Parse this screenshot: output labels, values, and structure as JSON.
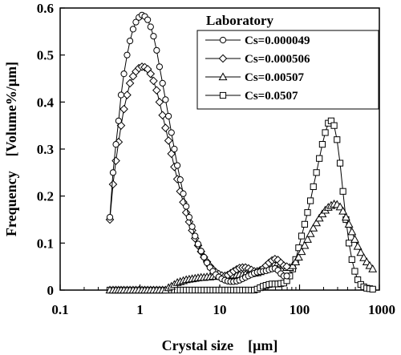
{
  "chart_data": {
    "type": "line",
    "title": "",
    "xlabel": "Crystal size　[μm]",
    "ylabel": "Frequency　[Volume%/μm]",
    "x_scale": "log",
    "xlim": [
      0.1,
      1000
    ],
    "ylim": [
      0,
      0.6
    ],
    "x_ticks": [
      0.1,
      1,
      10,
      100,
      1000
    ],
    "x_tick_labels": [
      "0.1",
      "1",
      "10",
      "100",
      "1000"
    ],
    "y_ticks": [
      0,
      0.1,
      0.2,
      0.3,
      0.4,
      0.5,
      0.6
    ],
    "y_tick_labels": [
      "0",
      "0.1",
      "0.2",
      "0.3",
      "0.4",
      "0.5",
      "0.6"
    ],
    "grid": false,
    "legend": {
      "title": "Laboratory",
      "position": "top-right"
    },
    "series": [
      {
        "name": "Cs=0.000049",
        "marker": "circle",
        "x": [
          0.42,
          0.46,
          0.5,
          0.54,
          0.58,
          0.63,
          0.69,
          0.75,
          0.82,
          0.89,
          0.97,
          1.06,
          1.15,
          1.25,
          1.36,
          1.48,
          1.62,
          1.76,
          1.92,
          2.09,
          2.28,
          2.48,
          2.7,
          2.94,
          3.2,
          3.49,
          3.8,
          4.14,
          4.51,
          4.91,
          5.35,
          5.83,
          6.35,
          6.92,
          7.54,
          8.21,
          8.94,
          9.74,
          10.6,
          11.6,
          12.6,
          13.7,
          14.9,
          16.3,
          17.7,
          19.3,
          21.0,
          22.9,
          24.9,
          27.1,
          29.5,
          32.1,
          35.0,
          38.1,
          41.5,
          45.2,
          49.2,
          53.6,
          58.3,
          63.5,
          69.2
        ],
        "y": [
          0.155,
          0.25,
          0.31,
          0.36,
          0.415,
          0.46,
          0.5,
          0.53,
          0.555,
          0.57,
          0.58,
          0.585,
          0.582,
          0.575,
          0.56,
          0.54,
          0.51,
          0.475,
          0.44,
          0.405,
          0.37,
          0.335,
          0.3,
          0.265,
          0.235,
          0.205,
          0.178,
          0.155,
          0.135,
          0.115,
          0.098,
          0.083,
          0.07,
          0.058,
          0.048,
          0.04,
          0.033,
          0.028,
          0.024,
          0.021,
          0.019,
          0.018,
          0.018,
          0.019,
          0.021,
          0.024,
          0.027,
          0.03,
          0.033,
          0.036,
          0.038,
          0.039,
          0.04,
          0.041,
          0.043,
          0.045,
          0.046,
          0.042,
          0.035,
          0.03,
          0.03
        ]
      },
      {
        "name": "Cs=0.000506",
        "marker": "diamond",
        "x": [
          0.42,
          0.46,
          0.5,
          0.54,
          0.58,
          0.63,
          0.69,
          0.75,
          0.82,
          0.89,
          0.97,
          1.06,
          1.15,
          1.25,
          1.36,
          1.48,
          1.62,
          1.76,
          1.92,
          2.09,
          2.28,
          2.48,
          2.7,
          2.94,
          3.2,
          3.49,
          3.8,
          4.14,
          4.51,
          4.91,
          5.35,
          5.83,
          6.35,
          6.92,
          7.54,
          8.21,
          8.94,
          9.74,
          10.6,
          11.6,
          12.6,
          13.7,
          14.9,
          16.3,
          17.7,
          19.3,
          21.0,
          22.9,
          24.9,
          27.1,
          29.5,
          32.1,
          35.0,
          38.1,
          41.5,
          45.2,
          49.2,
          53.6,
          58.3,
          63.5,
          69.2
        ],
        "y": [
          0.15,
          0.225,
          0.275,
          0.315,
          0.35,
          0.385,
          0.415,
          0.44,
          0.455,
          0.465,
          0.472,
          0.475,
          0.474,
          0.47,
          0.46,
          0.445,
          0.425,
          0.4,
          0.372,
          0.345,
          0.318,
          0.29,
          0.262,
          0.236,
          0.21,
          0.187,
          0.165,
          0.145,
          0.127,
          0.11,
          0.095,
          0.082,
          0.07,
          0.06,
          0.051,
          0.044,
          0.038,
          0.034,
          0.031,
          0.03,
          0.032,
          0.036,
          0.04,
          0.044,
          0.047,
          0.048,
          0.048,
          0.046,
          0.043,
          0.04,
          0.04,
          0.042,
          0.046,
          0.052,
          0.058,
          0.063,
          0.066,
          0.064,
          0.058,
          0.052,
          0.05
        ]
      },
      {
        "name": "Cs=0.00507",
        "marker": "triangle",
        "x": [
          0.42,
          0.46,
          0.5,
          0.54,
          0.58,
          0.63,
          0.69,
          0.75,
          0.82,
          0.89,
          0.97,
          1.06,
          1.15,
          1.25,
          1.36,
          1.48,
          1.62,
          1.76,
          1.92,
          2.09,
          2.28,
          2.48,
          2.7,
          2.94,
          3.2,
          3.49,
          3.8,
          4.14,
          4.51,
          4.91,
          5.35,
          5.83,
          6.35,
          6.92,
          7.54,
          8.21,
          8.94,
          9.74,
          10.6,
          11.6,
          12.6,
          13.7,
          14.9,
          16.3,
          17.7,
          19.3,
          21.0,
          22.9,
          24.9,
          27.1,
          29.5,
          32.1,
          35.0,
          38.1,
          41.5,
          45.2,
          49.2,
          53.6,
          58.3,
          63.5,
          69.2,
          75.4,
          82.1,
          89.5,
          97.5,
          106,
          116,
          126,
          137,
          149,
          163,
          177,
          193,
          210,
          229,
          249,
          271,
          295,
          322,
          350,
          382,
          416,
          453,
          493,
          537,
          585,
          638,
          695,
          757,
          825
        ],
        "y": [
          0,
          0,
          0,
          0,
          0,
          0,
          0,
          0,
          0,
          0,
          0,
          0,
          0,
          0,
          0,
          0,
          0,
          0,
          0,
          0,
          0.005,
          0.008,
          0.012,
          0.016,
          0.018,
          0.02,
          0.022,
          0.023,
          0.024,
          0.025,
          0.026,
          0.027,
          0.027,
          0.028,
          0.028,
          0.029,
          0.029,
          0.03,
          0.03,
          0.03,
          0.031,
          0.031,
          0.032,
          0.032,
          0.033,
          0.033,
          0.034,
          0.034,
          0.035,
          0.036,
          0.037,
          0.039,
          0.042,
          0.046,
          0.05,
          0.054,
          0.057,
          0.058,
          0.056,
          0.052,
          0.048,
          0.048,
          0.052,
          0.06,
          0.07,
          0.082,
          0.095,
          0.108,
          0.12,
          0.132,
          0.143,
          0.153,
          0.162,
          0.17,
          0.176,
          0.18,
          0.183,
          0.182,
          0.177,
          0.168,
          0.155,
          0.14,
          0.124,
          0.108,
          0.093,
          0.08,
          0.069,
          0.06,
          0.052,
          0.045
        ]
      },
      {
        "name": "Cs=0.0507",
        "marker": "square",
        "x": [
          0.42,
          0.46,
          0.5,
          0.54,
          0.58,
          0.63,
          0.69,
          0.75,
          0.82,
          0.89,
          0.97,
          1.06,
          1.15,
          1.25,
          1.36,
          1.48,
          1.62,
          1.76,
          1.92,
          2.09,
          2.28,
          2.48,
          2.7,
          2.94,
          3.2,
          3.49,
          3.8,
          4.14,
          4.51,
          4.91,
          5.35,
          5.83,
          6.35,
          6.92,
          7.54,
          8.21,
          8.94,
          9.74,
          10.6,
          11.6,
          12.6,
          13.7,
          14.9,
          16.3,
          17.7,
          19.3,
          21.0,
          22.9,
          24.9,
          27.1,
          29.5,
          32.1,
          35.0,
          38.1,
          41.5,
          45.2,
          49.2,
          53.6,
          58.3,
          63.5,
          69.2,
          75.4,
          82.1,
          89.5,
          97.5,
          106,
          116,
          126,
          137,
          149,
          163,
          177,
          193,
          210,
          229,
          249,
          271,
          295,
          322,
          350,
          382,
          416,
          453,
          493,
          537,
          585,
          638,
          695,
          757,
          825
        ],
        "y": [
          0,
          0,
          0,
          0,
          0,
          0,
          0,
          0,
          0,
          0,
          0,
          0,
          0,
          0,
          0,
          0,
          0,
          0,
          0,
          0,
          0,
          0,
          0,
          0,
          0,
          0,
          0,
          0,
          0,
          0,
          0,
          0,
          0,
          0,
          0,
          0,
          0,
          0,
          0,
          0,
          0,
          0,
          0,
          0,
          0,
          0,
          0,
          0,
          0,
          0,
          0.002,
          0.005,
          0.008,
          0.01,
          0.012,
          0.013,
          0.013,
          0.013,
          0.014,
          0.015,
          0.02,
          0.03,
          0.045,
          0.065,
          0.09,
          0.115,
          0.14,
          0.165,
          0.19,
          0.22,
          0.25,
          0.28,
          0.31,
          0.335,
          0.355,
          0.36,
          0.35,
          0.32,
          0.27,
          0.21,
          0.15,
          0.1,
          0.065,
          0.04,
          0.022,
          0.012,
          0.007,
          0.004,
          0.003,
          0.002
        ]
      }
    ]
  }
}
